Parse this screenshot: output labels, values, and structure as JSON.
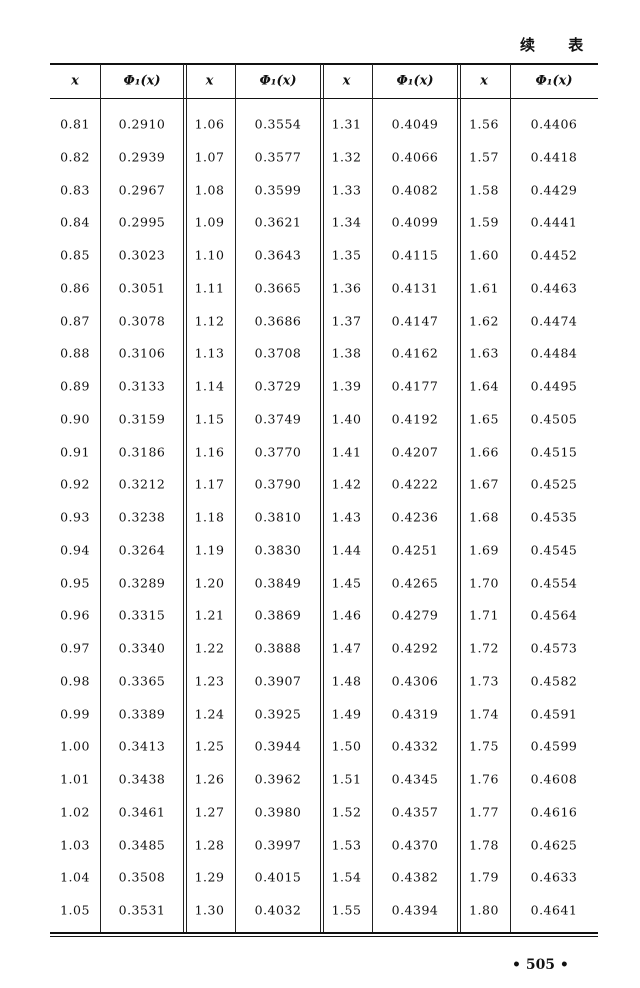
{
  "continued_label": "续 表",
  "headers": [
    "x",
    "Φ₁(x)",
    "x",
    "Φ₁(x)",
    "x",
    "Φ₁(x)",
    "x",
    "Φ₁(x)"
  ],
  "rows": [
    [
      "0.81",
      "0.2910",
      "1.06",
      "0.3554",
      "1.31",
      "0.4049",
      "1.56",
      "0.4406"
    ],
    [
      "0.82",
      "0.2939",
      "1.07",
      "0.3577",
      "1.32",
      "0.4066",
      "1.57",
      "0.4418"
    ],
    [
      "0.83",
      "0.2967",
      "1.08",
      "0.3599",
      "1.33",
      "0.4082",
      "1.58",
      "0.4429"
    ],
    [
      "0.84",
      "0.2995",
      "1.09",
      "0.3621",
      "1.34",
      "0.4099",
      "1.59",
      "0.4441"
    ],
    [
      "0.85",
      "0.3023",
      "1.10",
      "0.3643",
      "1.35",
      "0.4115",
      "1.60",
      "0.4452"
    ],
    [
      "0.86",
      "0.3051",
      "1.11",
      "0.3665",
      "1.36",
      "0.4131",
      "1.61",
      "0.4463"
    ],
    [
      "0.87",
      "0.3078",
      "1.12",
      "0.3686",
      "1.37",
      "0.4147",
      "1.62",
      "0.4474"
    ],
    [
      "0.88",
      "0.3106",
      "1.13",
      "0.3708",
      "1.38",
      "0.4162",
      "1.63",
      "0.4484"
    ],
    [
      "0.89",
      "0.3133",
      "1.14",
      "0.3729",
      "1.39",
      "0.4177",
      "1.64",
      "0.4495"
    ],
    [
      "0.90",
      "0.3159",
      "1.15",
      "0.3749",
      "1.40",
      "0.4192",
      "1.65",
      "0.4505"
    ],
    [
      "0.91",
      "0.3186",
      "1.16",
      "0.3770",
      "1.41",
      "0.4207",
      "1.66",
      "0.4515"
    ],
    [
      "0.92",
      "0.3212",
      "1.17",
      "0.3790",
      "1.42",
      "0.4222",
      "1.67",
      "0.4525"
    ],
    [
      "0.93",
      "0.3238",
      "1.18",
      "0.3810",
      "1.43",
      "0.4236",
      "1.68",
      "0.4535"
    ],
    [
      "0.94",
      "0.3264",
      "1.19",
      "0.3830",
      "1.44",
      "0.4251",
      "1.69",
      "0.4545"
    ],
    [
      "0.95",
      "0.3289",
      "1.20",
      "0.3849",
      "1.45",
      "0.4265",
      "1.70",
      "0.4554"
    ],
    [
      "0.96",
      "0.3315",
      "1.21",
      "0.3869",
      "1.46",
      "0.4279",
      "1.71",
      "0.4564"
    ],
    [
      "0.97",
      "0.3340",
      "1.22",
      "0.3888",
      "1.47",
      "0.4292",
      "1.72",
      "0.4573"
    ],
    [
      "0.98",
      "0.3365",
      "1.23",
      "0.3907",
      "1.48",
      "0.4306",
      "1.73",
      "0.4582"
    ],
    [
      "0.99",
      "0.3389",
      "1.24",
      "0.3925",
      "1.49",
      "0.4319",
      "1.74",
      "0.4591"
    ],
    [
      "1.00",
      "0.3413",
      "1.25",
      "0.3944",
      "1.50",
      "0.4332",
      "1.75",
      "0.4599"
    ],
    [
      "1.01",
      "0.3438",
      "1.26",
      "0.3962",
      "1.51",
      "0.4345",
      "1.76",
      "0.4608"
    ],
    [
      "1.02",
      "0.3461",
      "1.27",
      "0.3980",
      "1.52",
      "0.4357",
      "1.77",
      "0.4616"
    ],
    [
      "1.03",
      "0.3485",
      "1.28",
      "0.3997",
      "1.53",
      "0.4370",
      "1.78",
      "0.4625"
    ],
    [
      "1.04",
      "0.3508",
      "1.29",
      "0.4015",
      "1.54",
      "0.4382",
      "1.79",
      "0.4633"
    ],
    [
      "1.05",
      "0.3531",
      "1.30",
      "0.4032",
      "1.55",
      "0.4394",
      "1.80",
      "0.4641"
    ]
  ],
  "page_number": "• 505 •"
}
